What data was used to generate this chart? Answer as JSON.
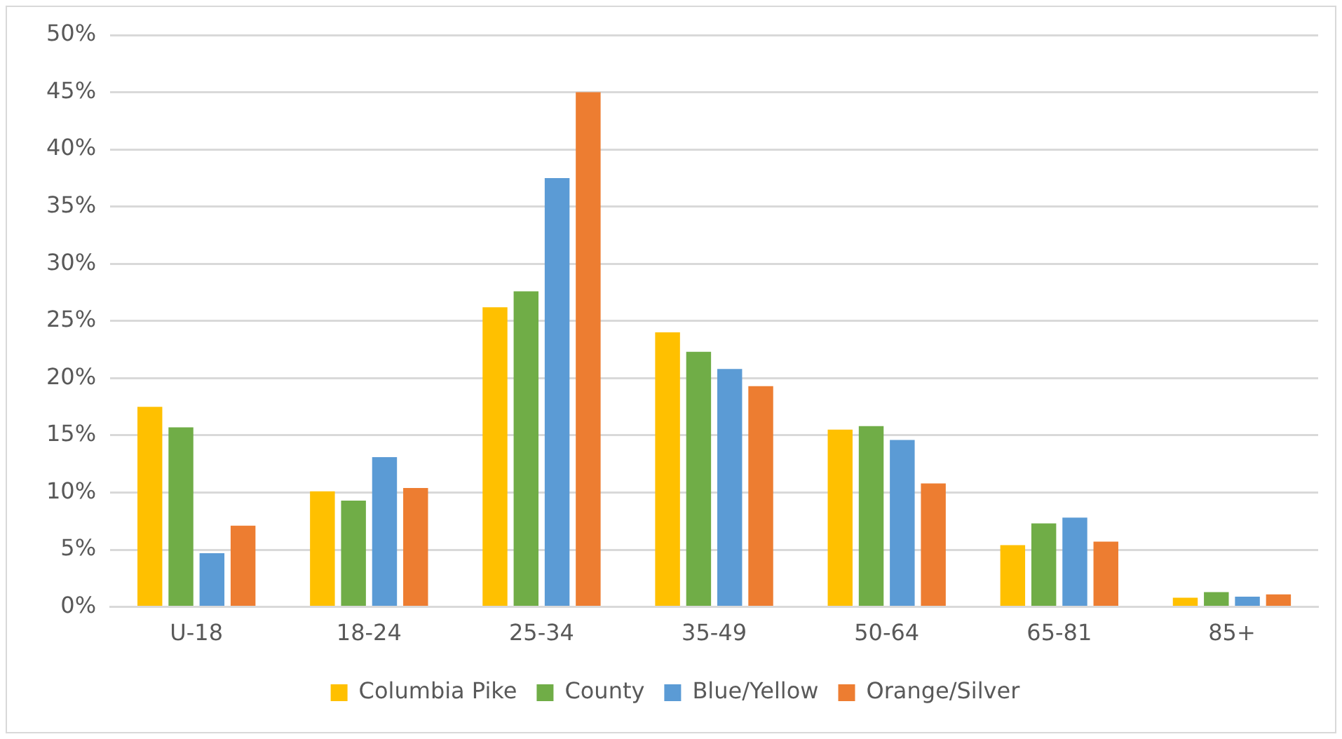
{
  "chart_data": {
    "type": "bar",
    "categories": [
      "U-18",
      "18-24",
      "25-34",
      "35-49",
      "50-64",
      "65-81",
      "85+"
    ],
    "series": [
      {
        "name": "Columbia Pike",
        "color": "#ffc000",
        "values": [
          17.5,
          10.1,
          26.2,
          24.0,
          15.5,
          5.4,
          0.8
        ]
      },
      {
        "name": "County",
        "color": "#70ad47",
        "values": [
          15.7,
          9.3,
          27.6,
          22.3,
          15.8,
          7.3,
          1.3
        ]
      },
      {
        "name": "Blue/Yellow",
        "color": "#5b9bd5",
        "values": [
          4.7,
          13.1,
          37.5,
          20.8,
          14.6,
          7.8,
          0.9
        ]
      },
      {
        "name": "Orange/Silver",
        "color": "#ed7d31",
        "values": [
          7.1,
          10.4,
          45.0,
          19.3,
          10.8,
          5.7,
          1.1
        ]
      }
    ],
    "ylim": [
      0,
      50
    ],
    "yticks": [
      {
        "value": 0,
        "label": "0%"
      },
      {
        "value": 5,
        "label": "5%"
      },
      {
        "value": 10,
        "label": "10%"
      },
      {
        "value": 15,
        "label": "15%"
      },
      {
        "value": 20,
        "label": "20%"
      },
      {
        "value": 25,
        "label": "25%"
      },
      {
        "value": 30,
        "label": "30%"
      },
      {
        "value": 35,
        "label": "35%"
      },
      {
        "value": 40,
        "label": "40%"
      },
      {
        "value": 45,
        "label": "45%"
      },
      {
        "value": 50,
        "label": "50%"
      }
    ],
    "grid": "y",
    "legend": "bottom"
  }
}
